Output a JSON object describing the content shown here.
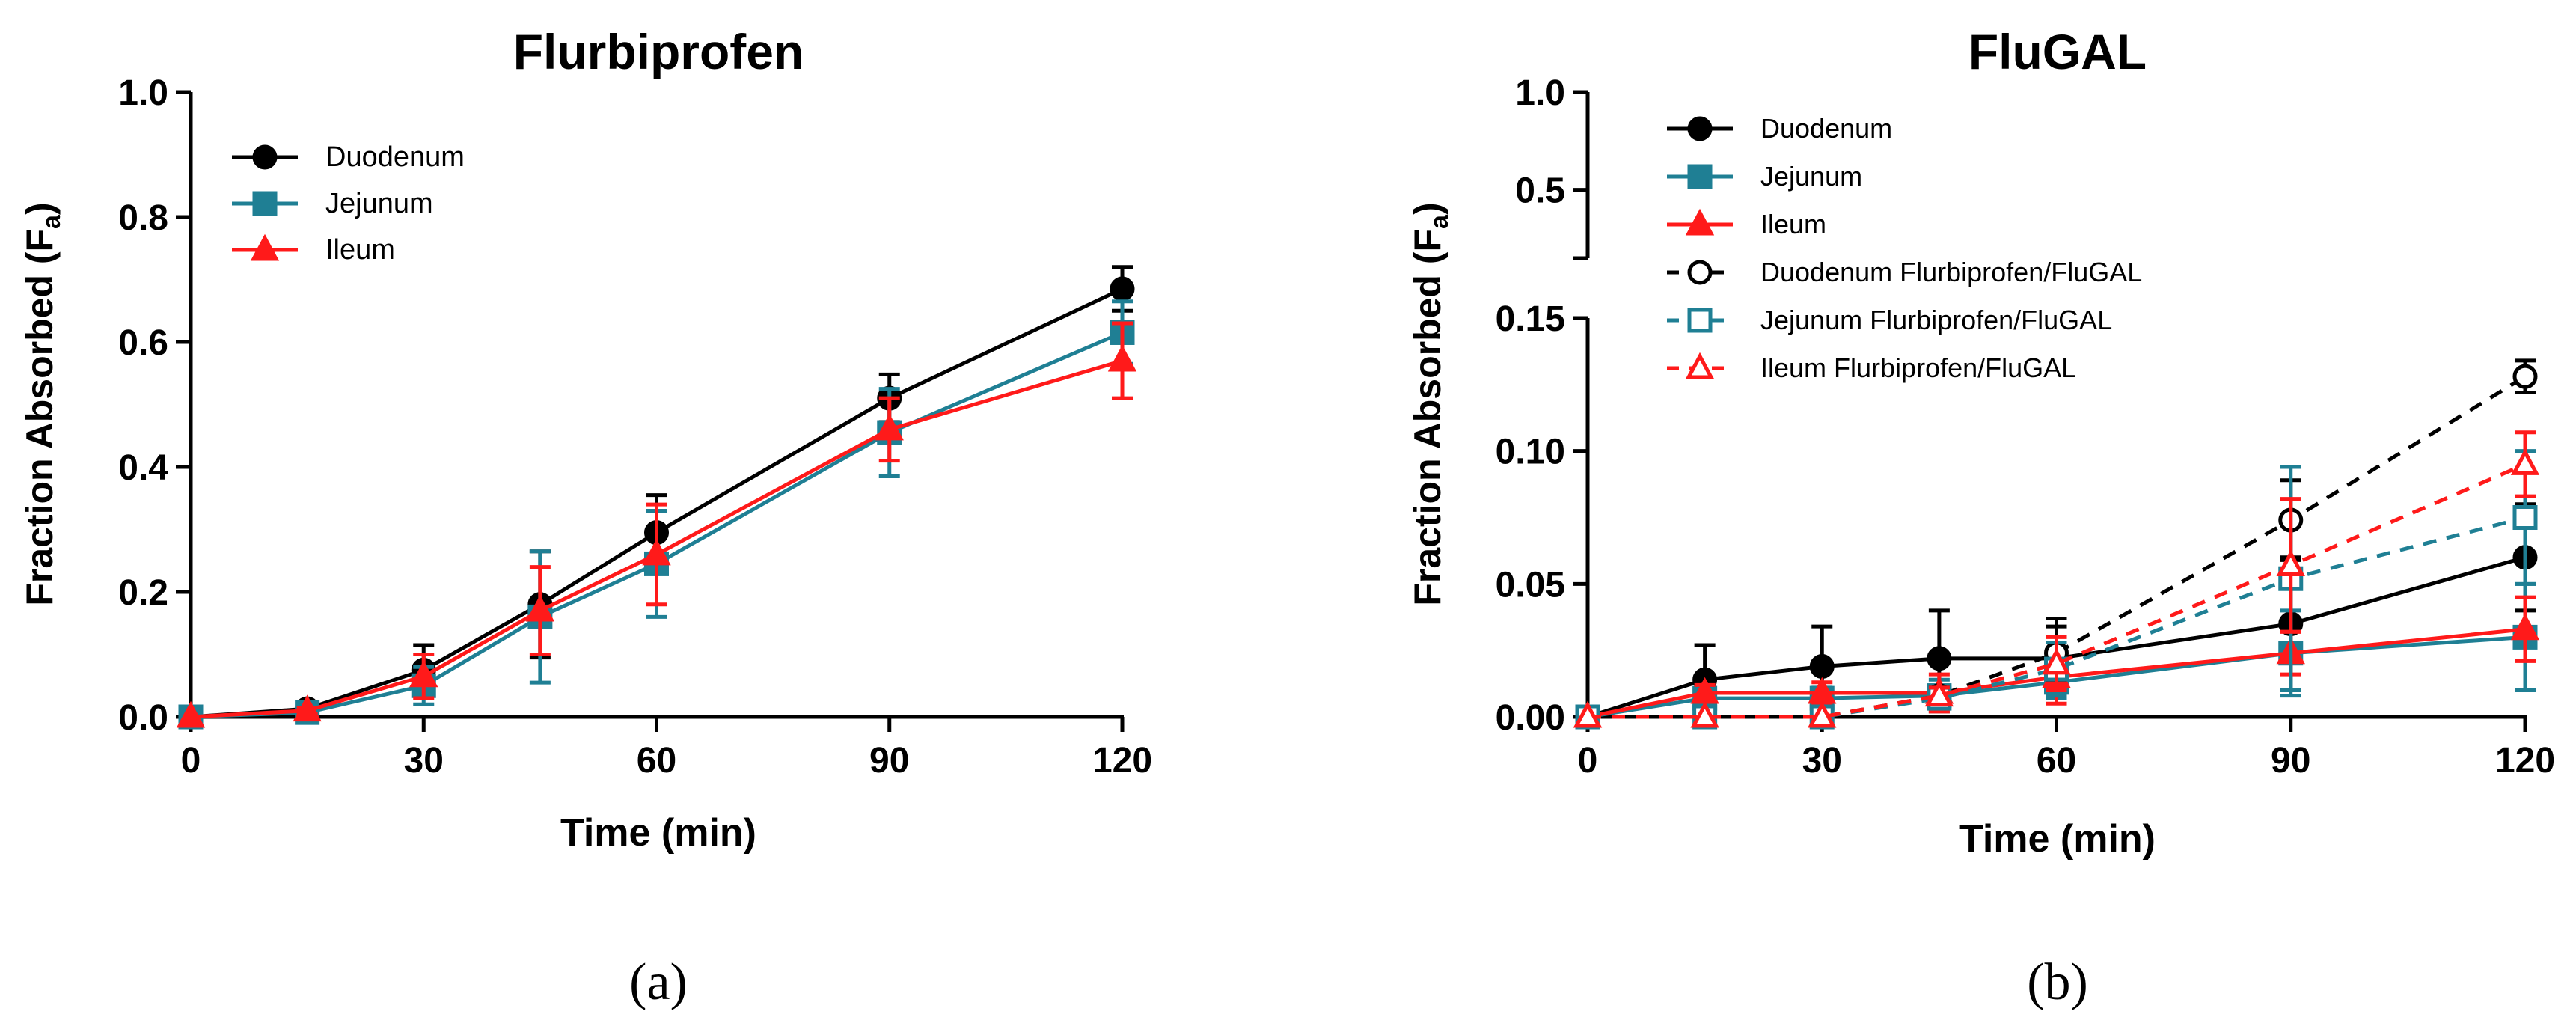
{
  "chart_data": [
    {
      "type": "line",
      "panel_label": "(a)",
      "title": "Flurbiprofen",
      "xlabel": "Time (min)",
      "ylabel": "Fraction Absorbed (F",
      "ylabel_sub": "a",
      "ylabel_close": ")",
      "xlim": [
        0,
        120
      ],
      "ylim": [
        0,
        1.0
      ],
      "x_ticks": [
        0,
        30,
        60,
        90,
        120
      ],
      "x_tick_labels": [
        "0",
        "30",
        "60",
        "90",
        "120"
      ],
      "y_ticks": [
        0.0,
        0.2,
        0.4,
        0.6,
        0.8,
        1.0
      ],
      "y_tick_labels": [
        "0.0",
        "0.2",
        "0.4",
        "0.6",
        "0.8",
        "1.0"
      ],
      "grid": false,
      "legend_position": "top-left",
      "x": [
        0,
        15,
        30,
        45,
        60,
        90,
        120
      ],
      "series": [
        {
          "name": "Duodenum",
          "color": "#000000",
          "marker": "circle",
          "filled": true,
          "dashed": false,
          "values": [
            0,
            0.013,
            0.075,
            0.18,
            0.295,
            0.51,
            0.685
          ],
          "errors": [
            0,
            0.006,
            0.04,
            0.085,
            0.06,
            0.038,
            0.035
          ]
        },
        {
          "name": "Jejunum",
          "color": "#1f7f94",
          "marker": "square",
          "filled": true,
          "dashed": false,
          "values": [
            0,
            0.007,
            0.05,
            0.16,
            0.245,
            0.455,
            0.615
          ],
          "errors": [
            0,
            0.005,
            0.03,
            0.105,
            0.085,
            0.07,
            0.05
          ]
        },
        {
          "name": "Ileum",
          "color": "#ff1a1a",
          "marker": "triangle",
          "filled": true,
          "dashed": false,
          "values": [
            0,
            0.01,
            0.065,
            0.17,
            0.26,
            0.46,
            0.57
          ],
          "errors": [
            0,
            0.005,
            0.035,
            0.07,
            0.08,
            0.05,
            0.06
          ]
        }
      ]
    },
    {
      "type": "line",
      "panel_label": "(b)",
      "title": "FluGAL",
      "xlabel": "Time (min)",
      "ylabel": "Fraction Absorbed (F",
      "ylabel_sub": "a",
      "ylabel_close": ")",
      "xlim": [
        0,
        120
      ],
      "ylim_lower": [
        0,
        0.15
      ],
      "ylim_upper": [
        0.15,
        1.0
      ],
      "axis_break": true,
      "x_ticks": [
        0,
        30,
        60,
        90,
        120
      ],
      "x_tick_labels": [
        "0",
        "30",
        "60",
        "90",
        "120"
      ],
      "y_ticks_lower": [
        0.0,
        0.05,
        0.1,
        0.15
      ],
      "y_tick_labels_lower": [
        "0.00",
        "0.05",
        "0.10",
        "0.15"
      ],
      "y_ticks_upper": [
        0.5,
        1.0
      ],
      "y_tick_labels_upper": [
        "0.5",
        "1.0"
      ],
      "grid": false,
      "legend_position": "top-left",
      "x": [
        0,
        15,
        30,
        45,
        60,
        90,
        120
      ],
      "series": [
        {
          "name": "Duodenum",
          "color": "#000000",
          "marker": "circle",
          "filled": true,
          "dashed": false,
          "values": [
            0,
            0.014,
            0.019,
            0.022,
            0.022,
            0.035,
            0.06
          ],
          "errors": [
            0,
            0.013,
            0.015,
            0.018,
            0.015,
            0.025,
            0.02
          ]
        },
        {
          "name": "Jejunum",
          "color": "#1f7f94",
          "marker": "square",
          "filled": true,
          "dashed": false,
          "values": [
            0,
            0.007,
            0.007,
            0.008,
            0.013,
            0.024,
            0.03
          ],
          "errors": [
            0,
            0.003,
            0.004,
            0.006,
            0.006,
            0.016,
            0.02
          ]
        },
        {
          "name": "Ileum",
          "color": "#ff1a1a",
          "marker": "triangle",
          "filled": true,
          "dashed": false,
          "values": [
            0,
            0.009,
            0.009,
            0.009,
            0.015,
            0.024,
            0.033
          ],
          "errors": [
            0,
            0.003,
            0.004,
            0.007,
            0.01,
            0.008,
            0.012
          ]
        },
        {
          "name": "Duodenum Flurbiprofen/FluGAL",
          "color": "#000000",
          "marker": "circle",
          "filled": false,
          "dashed": true,
          "values": [
            0,
            0,
            0,
            0.008,
            0.024,
            0.074,
            0.128
          ],
          "errors": [
            0,
            0,
            0,
            0.003,
            0.01,
            0.015,
            0.006
          ]
        },
        {
          "name": "Jejunum Flurbiprofen/FluGAL",
          "color": "#1f7f94",
          "marker": "square",
          "filled": false,
          "dashed": true,
          "values": [
            0,
            0,
            0,
            0.007,
            0.018,
            0.052,
            0.075
          ],
          "errors": [
            0,
            0,
            0,
            0.003,
            0.01,
            0.042,
            0.025
          ]
        },
        {
          "name": "Ileum Flurbiprofen/FluGAL",
          "color": "#ff1a1a",
          "marker": "triangle",
          "filled": false,
          "dashed": true,
          "values": [
            0,
            0,
            0,
            0.008,
            0.02,
            0.057,
            0.095
          ],
          "errors": [
            0,
            0,
            0,
            0.003,
            0.01,
            0.025,
            0.012
          ]
        }
      ]
    }
  ]
}
